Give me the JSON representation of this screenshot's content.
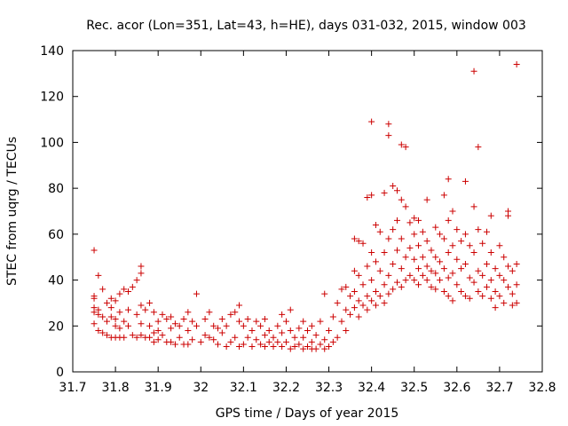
{
  "chart_data": {
    "type": "scatter",
    "title": "Rec. acor (Lon=351, Lat=43, h=HE), days 031-032, 2015, window 003",
    "xlabel": "GPS time / Days of year 2015",
    "ylabel": "STEC from uqrg / TECUs",
    "xlim": [
      31.7,
      32.8
    ],
    "ylim": [
      0,
      140
    ],
    "xticks": [
      31.7,
      31.8,
      31.9,
      32.0,
      32.1,
      32.2,
      32.3,
      32.4,
      32.5,
      32.6,
      32.7,
      32.8
    ],
    "xtick_labels": [
      "31.7",
      "31.8",
      "31.9",
      "32",
      "32.1",
      "32.2",
      "32.3",
      "32.4",
      "32.5",
      "32.6",
      "32.7",
      "32.8"
    ],
    "yticks": [
      0,
      20,
      40,
      60,
      80,
      100,
      120,
      140
    ],
    "ytick_labels": [
      "0",
      "20",
      "40",
      "60",
      "80",
      "100",
      "120",
      "140"
    ],
    "marker": "+",
    "color": "#cc0000",
    "series": [
      {
        "name": "STEC",
        "points": [
          [
            31.75,
            53
          ],
          [
            31.75,
            33
          ],
          [
            31.75,
            32
          ],
          [
            31.75,
            28
          ],
          [
            31.75,
            26
          ],
          [
            31.75,
            21
          ],
          [
            31.76,
            42
          ],
          [
            31.76,
            27
          ],
          [
            31.76,
            25
          ],
          [
            31.76,
            18
          ],
          [
            31.77,
            36
          ],
          [
            31.77,
            24
          ],
          [
            31.77,
            17
          ],
          [
            31.78,
            30
          ],
          [
            31.78,
            22
          ],
          [
            31.78,
            16
          ],
          [
            31.79,
            32
          ],
          [
            31.79,
            28
          ],
          [
            31.79,
            24
          ],
          [
            31.79,
            15
          ],
          [
            31.8,
            31
          ],
          [
            31.8,
            23
          ],
          [
            31.8,
            20
          ],
          [
            31.8,
            15
          ],
          [
            31.81,
            34
          ],
          [
            31.81,
            26
          ],
          [
            31.81,
            19
          ],
          [
            31.81,
            15
          ],
          [
            31.82,
            36
          ],
          [
            31.82,
            22
          ],
          [
            31.82,
            15
          ],
          [
            31.83,
            35
          ],
          [
            31.83,
            27
          ],
          [
            31.83,
            20
          ],
          [
            31.84,
            37
          ],
          [
            31.84,
            16
          ],
          [
            31.85,
            40
          ],
          [
            31.85,
            25
          ],
          [
            31.85,
            15
          ],
          [
            31.86,
            46
          ],
          [
            31.86,
            43
          ],
          [
            31.86,
            29
          ],
          [
            31.86,
            21
          ],
          [
            31.86,
            16
          ],
          [
            31.87,
            27
          ],
          [
            31.87,
            15
          ],
          [
            31.88,
            30
          ],
          [
            31.88,
            20
          ],
          [
            31.88,
            15
          ],
          [
            31.89,
            26
          ],
          [
            31.89,
            17
          ],
          [
            31.89,
            13
          ],
          [
            31.9,
            22
          ],
          [
            31.9,
            18
          ],
          [
            31.9,
            14
          ],
          [
            31.91,
            25
          ],
          [
            31.91,
            16
          ],
          [
            31.92,
            23
          ],
          [
            31.92,
            13
          ],
          [
            31.93,
            24
          ],
          [
            31.93,
            19
          ],
          [
            31.93,
            13
          ],
          [
            31.94,
            21
          ],
          [
            31.94,
            12
          ],
          [
            31.95,
            20
          ],
          [
            31.95,
            15
          ],
          [
            31.96,
            23
          ],
          [
            31.96,
            12
          ],
          [
            31.97,
            26
          ],
          [
            31.97,
            18
          ],
          [
            31.97,
            12
          ],
          [
            31.98,
            22
          ],
          [
            31.98,
            14
          ],
          [
            31.99,
            34
          ],
          [
            31.99,
            20
          ],
          [
            32.0,
            13
          ],
          [
            32.01,
            23
          ],
          [
            32.01,
            16
          ],
          [
            32.02,
            26
          ],
          [
            32.02,
            15
          ],
          [
            32.03,
            20
          ],
          [
            32.03,
            14
          ],
          [
            32.04,
            19
          ],
          [
            32.04,
            12
          ],
          [
            32.05,
            23
          ],
          [
            32.05,
            17
          ],
          [
            32.06,
            20
          ],
          [
            32.06,
            11
          ],
          [
            32.07,
            25
          ],
          [
            32.07,
            13
          ],
          [
            32.08,
            26
          ],
          [
            32.08,
            15
          ],
          [
            32.09,
            29
          ],
          [
            32.09,
            22
          ],
          [
            32.09,
            11
          ],
          [
            32.1,
            20
          ],
          [
            32.1,
            12
          ],
          [
            32.11,
            23
          ],
          [
            32.11,
            15
          ],
          [
            32.12,
            18
          ],
          [
            32.12,
            11
          ],
          [
            32.13,
            22
          ],
          [
            32.13,
            14
          ],
          [
            32.14,
            20
          ],
          [
            32.14,
            12
          ],
          [
            32.15,
            23
          ],
          [
            32.15,
            16
          ],
          [
            32.15,
            11
          ],
          [
            32.16,
            18
          ],
          [
            32.16,
            13
          ],
          [
            32.17,
            15
          ],
          [
            32.17,
            11
          ],
          [
            32.18,
            20
          ],
          [
            32.18,
            13
          ],
          [
            32.19,
            25
          ],
          [
            32.19,
            17
          ],
          [
            32.19,
            11
          ],
          [
            32.2,
            22
          ],
          [
            32.2,
            13
          ],
          [
            32.21,
            27
          ],
          [
            32.21,
            18
          ],
          [
            32.21,
            10
          ],
          [
            32.22,
            15
          ],
          [
            32.22,
            11
          ],
          [
            32.23,
            19
          ],
          [
            32.23,
            12
          ],
          [
            32.24,
            22
          ],
          [
            32.24,
            15
          ],
          [
            32.24,
            10
          ],
          [
            32.25,
            18
          ],
          [
            32.25,
            11
          ],
          [
            32.26,
            20
          ],
          [
            32.26,
            13
          ],
          [
            32.26,
            10
          ],
          [
            32.27,
            16
          ],
          [
            32.27,
            10
          ],
          [
            32.28,
            22
          ],
          [
            32.28,
            12
          ],
          [
            32.29,
            34
          ],
          [
            32.29,
            14
          ],
          [
            32.29,
            10
          ],
          [
            32.3,
            18
          ],
          [
            32.3,
            11
          ],
          [
            32.31,
            24
          ],
          [
            32.31,
            13
          ],
          [
            32.32,
            30
          ],
          [
            32.32,
            15
          ],
          [
            32.33,
            36
          ],
          [
            32.33,
            22
          ],
          [
            32.34,
            37
          ],
          [
            32.34,
            27
          ],
          [
            32.34,
            18
          ],
          [
            32.35,
            33
          ],
          [
            32.35,
            25
          ],
          [
            32.36,
            58
          ],
          [
            32.36,
            44
          ],
          [
            32.36,
            35
          ],
          [
            32.36,
            28
          ],
          [
            32.37,
            57
          ],
          [
            32.37,
            42
          ],
          [
            32.37,
            31
          ],
          [
            32.37,
            24
          ],
          [
            32.38,
            56
          ],
          [
            32.38,
            38
          ],
          [
            32.38,
            29
          ],
          [
            32.39,
            76
          ],
          [
            32.39,
            46
          ],
          [
            32.39,
            33
          ],
          [
            32.39,
            27
          ],
          [
            32.4,
            109
          ],
          [
            32.4,
            77
          ],
          [
            32.4,
            52
          ],
          [
            32.4,
            40
          ],
          [
            32.4,
            31
          ],
          [
            32.41,
            64
          ],
          [
            32.41,
            48
          ],
          [
            32.41,
            35
          ],
          [
            32.41,
            29
          ],
          [
            32.42,
            61
          ],
          [
            32.42,
            44
          ],
          [
            32.42,
            33
          ],
          [
            32.43,
            78
          ],
          [
            32.43,
            52
          ],
          [
            32.43,
            38
          ],
          [
            32.43,
            30
          ],
          [
            32.44,
            108
          ],
          [
            32.44,
            103
          ],
          [
            32.44,
            58
          ],
          [
            32.44,
            42
          ],
          [
            32.44,
            34
          ],
          [
            32.45,
            81
          ],
          [
            32.45,
            62
          ],
          [
            32.45,
            47
          ],
          [
            32.45,
            36
          ],
          [
            32.46,
            79
          ],
          [
            32.46,
            66
          ],
          [
            32.46,
            53
          ],
          [
            32.46,
            39
          ],
          [
            32.47,
            99
          ],
          [
            32.47,
            75
          ],
          [
            32.47,
            58
          ],
          [
            32.47,
            45
          ],
          [
            32.47,
            37
          ],
          [
            32.48,
            98
          ],
          [
            32.48,
            72
          ],
          [
            32.48,
            50
          ],
          [
            32.48,
            40
          ],
          [
            32.49,
            65
          ],
          [
            32.49,
            54
          ],
          [
            32.49,
            42
          ],
          [
            32.5,
            67
          ],
          [
            32.5,
            60
          ],
          [
            32.5,
            49
          ],
          [
            32.5,
            40
          ],
          [
            32.51,
            66
          ],
          [
            32.51,
            55
          ],
          [
            32.51,
            45
          ],
          [
            32.51,
            38
          ],
          [
            32.52,
            61
          ],
          [
            32.52,
            50
          ],
          [
            32.52,
            42
          ],
          [
            32.53,
            75
          ],
          [
            32.53,
            57
          ],
          [
            32.53,
            46
          ],
          [
            32.53,
            40
          ],
          [
            32.54,
            53
          ],
          [
            32.54,
            44
          ],
          [
            32.54,
            37
          ],
          [
            32.55,
            63
          ],
          [
            32.55,
            50
          ],
          [
            32.55,
            43
          ],
          [
            32.55,
            36
          ],
          [
            32.56,
            60
          ],
          [
            32.56,
            48
          ],
          [
            32.56,
            40
          ],
          [
            32.57,
            77
          ],
          [
            32.57,
            58
          ],
          [
            32.57,
            45
          ],
          [
            32.57,
            35
          ],
          [
            32.58,
            84
          ],
          [
            32.58,
            66
          ],
          [
            32.58,
            52
          ],
          [
            32.58,
            41
          ],
          [
            32.58,
            33
          ],
          [
            32.59,
            70
          ],
          [
            32.59,
            55
          ],
          [
            32.59,
            43
          ],
          [
            32.59,
            31
          ],
          [
            32.6,
            62
          ],
          [
            32.6,
            49
          ],
          [
            32.6,
            38
          ],
          [
            32.61,
            57
          ],
          [
            32.61,
            45
          ],
          [
            32.61,
            35
          ],
          [
            32.62,
            83
          ],
          [
            32.62,
            60
          ],
          [
            32.62,
            47
          ],
          [
            32.62,
            33
          ],
          [
            32.63,
            55
          ],
          [
            32.63,
            41
          ],
          [
            32.63,
            32
          ],
          [
            32.64,
            131
          ],
          [
            32.64,
            72
          ],
          [
            32.64,
            52
          ],
          [
            32.64,
            39
          ],
          [
            32.65,
            98
          ],
          [
            32.65,
            62
          ],
          [
            32.65,
            44
          ],
          [
            32.65,
            35
          ],
          [
            32.66,
            56
          ],
          [
            32.66,
            42
          ],
          [
            32.66,
            33
          ],
          [
            32.67,
            61
          ],
          [
            32.67,
            47
          ],
          [
            32.67,
            37
          ],
          [
            32.68,
            68
          ],
          [
            32.68,
            52
          ],
          [
            32.68,
            40
          ],
          [
            32.68,
            32
          ],
          [
            32.69,
            45
          ],
          [
            32.69,
            35
          ],
          [
            32.69,
            28
          ],
          [
            32.7,
            55
          ],
          [
            32.7,
            42
          ],
          [
            32.7,
            33
          ],
          [
            32.71,
            50
          ],
          [
            32.71,
            40
          ],
          [
            32.71,
            30
          ],
          [
            32.72,
            70
          ],
          [
            32.72,
            68
          ],
          [
            32.72,
            46
          ],
          [
            32.72,
            37
          ],
          [
            32.73,
            44
          ],
          [
            32.73,
            34
          ],
          [
            32.73,
            29
          ],
          [
            32.74,
            134
          ],
          [
            32.74,
            47
          ],
          [
            32.74,
            38
          ],
          [
            32.74,
            30
          ]
        ]
      }
    ]
  }
}
